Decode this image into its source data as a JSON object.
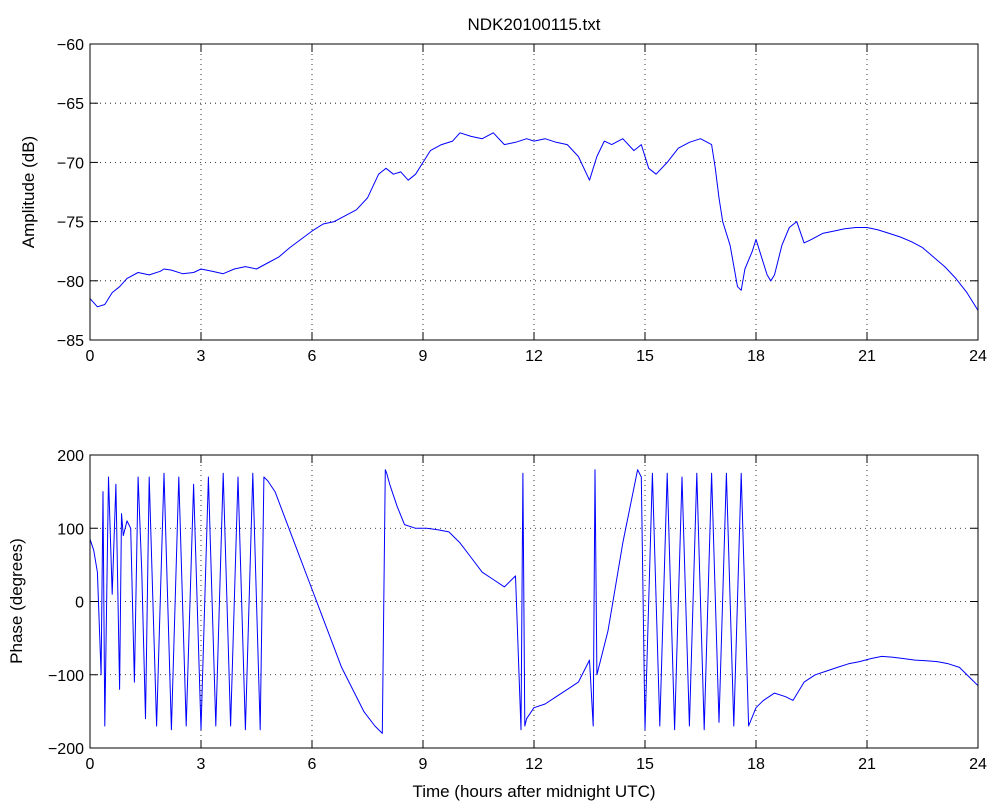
{
  "chart_data": [
    {
      "type": "line",
      "title": "NDK20100115.txt",
      "xlabel": "",
      "ylabel": "Amplitude (dB)",
      "xlim": [
        0,
        24
      ],
      "ylim": [
        -85,
        -60
      ],
      "x_ticks": [
        0,
        3,
        6,
        9,
        12,
        15,
        18,
        21,
        24
      ],
      "y_ticks": [
        -85,
        -80,
        -75,
        -70,
        -65,
        -60
      ],
      "x_tick_labels": [
        "0",
        "3",
        "6",
        "9",
        "12",
        "15",
        "18",
        "21",
        "24"
      ],
      "y_tick_labels": [
        "-85",
        "-80",
        "-75",
        "-70",
        "-65",
        "-60"
      ],
      "grid": true,
      "color": "#0000ff",
      "series": [
        {
          "x": [
            0,
            0.2,
            0.4,
            0.6,
            0.8,
            1.0,
            1.3,
            1.6,
            1.9,
            2.0,
            2.2,
            2.5,
            2.8,
            3.0,
            3.3,
            3.6,
            3.9,
            4.2,
            4.5,
            4.8,
            5.1,
            5.4,
            5.7,
            6.0,
            6.3,
            6.6,
            6.9,
            7.2,
            7.5,
            7.8,
            8.0,
            8.2,
            8.4,
            8.6,
            8.8,
            9.0,
            9.2,
            9.5,
            9.8,
            10.0,
            10.3,
            10.6,
            10.9,
            11.2,
            11.5,
            11.8,
            12.0,
            12.3,
            12.6,
            12.9,
            13.2,
            13.5,
            13.7,
            13.9,
            14.1,
            14.4,
            14.7,
            14.9,
            15.1,
            15.3,
            15.6,
            15.9,
            16.2,
            16.5,
            16.8,
            16.9,
            17.0,
            17.1,
            17.3,
            17.5,
            17.6,
            17.7,
            17.9,
            18.0,
            18.1,
            18.3,
            18.4,
            18.5,
            18.7,
            18.9,
            19.1,
            19.3,
            19.5,
            19.8,
            20.1,
            20.4,
            20.7,
            21.0,
            21.3,
            21.6,
            21.9,
            22.2,
            22.5,
            22.8,
            23.1,
            23.4,
            23.7,
            24.0
          ],
          "y": [
            -81.5,
            -82.2,
            -82.0,
            -81.0,
            -80.5,
            -79.8,
            -79.3,
            -79.5,
            -79.2,
            -79.0,
            -79.1,
            -79.4,
            -79.3,
            -79.0,
            -79.2,
            -79.4,
            -79.0,
            -78.8,
            -79.0,
            -78.5,
            -78.0,
            -77.2,
            -76.5,
            -75.8,
            -75.2,
            -75.0,
            -74.5,
            -74.0,
            -73.0,
            -71.0,
            -70.5,
            -71.0,
            -70.8,
            -71.5,
            -71.0,
            -70.0,
            -69.0,
            -68.5,
            -68.2,
            -67.5,
            -67.8,
            -68.0,
            -67.5,
            -68.5,
            -68.3,
            -68.0,
            -68.2,
            -68.0,
            -68.3,
            -68.5,
            -69.5,
            -71.5,
            -69.5,
            -68.2,
            -68.5,
            -68.0,
            -69.0,
            -68.5,
            -70.5,
            -71.0,
            -70.0,
            -68.8,
            -68.3,
            -68.0,
            -68.5,
            -70.5,
            -73.0,
            -75.0,
            -77.0,
            -80.5,
            -80.8,
            -79.0,
            -77.5,
            -76.5,
            -77.5,
            -79.5,
            -80.0,
            -79.5,
            -77.0,
            -75.5,
            -75.0,
            -76.8,
            -76.5,
            -76.0,
            -75.8,
            -75.6,
            -75.5,
            -75.5,
            -75.7,
            -76.0,
            -76.3,
            -76.7,
            -77.2,
            -78.0,
            -78.8,
            -79.8,
            -81.0,
            -82.5
          ]
        }
      ]
    },
    {
      "type": "line",
      "title": "",
      "xlabel": "Time (hours after midnight UTC)",
      "ylabel": "Phase (degrees)",
      "xlim": [
        0,
        24
      ],
      "ylim": [
        -200,
        200
      ],
      "x_ticks": [
        0,
        3,
        6,
        9,
        12,
        15,
        18,
        21,
        24
      ],
      "y_ticks": [
        -200,
        -100,
        0,
        100,
        200
      ],
      "x_tick_labels": [
        "0",
        "3",
        "6",
        "9",
        "12",
        "15",
        "18",
        "21",
        "24"
      ],
      "y_tick_labels": [
        "-200",
        "-100",
        "0",
        "100",
        "200"
      ],
      "grid": true,
      "color": "#0000ff",
      "series": [
        {
          "x": [
            0,
            0.1,
            0.2,
            0.3,
            0.35,
            0.4,
            0.5,
            0.6,
            0.7,
            0.8,
            0.85,
            0.9,
            1.0,
            1.1,
            1.2,
            1.3,
            1.4,
            1.5,
            1.6,
            1.8,
            2.0,
            2.2,
            2.4,
            2.6,
            2.8,
            3.0,
            3.2,
            3.4,
            3.6,
            3.8,
            4.0,
            4.2,
            4.4,
            4.6,
            4.7,
            4.8,
            5.0,
            5.3,
            5.6,
            5.9,
            6.2,
            6.5,
            6.8,
            7.1,
            7.4,
            7.7,
            7.9,
            7.98,
            8.02,
            8.1,
            8.3,
            8.5,
            8.8,
            9.1,
            9.4,
            9.7,
            10.0,
            10.3,
            10.6,
            10.9,
            11.2,
            11.5,
            11.65,
            11.7,
            11.75,
            11.8,
            12.0,
            12.3,
            12.6,
            12.9,
            13.2,
            13.5,
            13.6,
            13.65,
            13.7,
            13.8,
            14.0,
            14.2,
            14.4,
            14.6,
            14.8,
            14.9,
            15.0,
            15.2,
            15.4,
            15.6,
            15.8,
            16.0,
            16.2,
            16.4,
            16.6,
            16.8,
            17.0,
            17.2,
            17.4,
            17.6,
            17.8,
            18.0,
            18.2,
            18.5,
            18.8,
            19.0,
            19.3,
            19.6,
            19.9,
            20.2,
            20.5,
            20.8,
            21.1,
            21.4,
            21.7,
            22.0,
            22.3,
            22.6,
            22.9,
            23.2,
            23.5,
            23.8,
            24.0
          ],
          "y": [
            85,
            70,
            40,
            -100,
            150,
            -170,
            170,
            10,
            160,
            -120,
            120,
            90,
            110,
            100,
            -110,
            170,
            40,
            -160,
            170,
            -170,
            175,
            -175,
            170,
            -170,
            160,
            -175,
            170,
            -170,
            175,
            -170,
            170,
            -175,
            175,
            -175,
            170,
            165,
            150,
            110,
            70,
            30,
            -10,
            -50,
            -90,
            -120,
            -150,
            -170,
            -180,
            180,
            175,
            160,
            130,
            105,
            100,
            100,
            98,
            95,
            80,
            60,
            40,
            30,
            20,
            35,
            -175,
            175,
            -170,
            -160,
            -145,
            -140,
            -130,
            -120,
            -110,
            -80,
            -170,
            180,
            -100,
            -80,
            -40,
            20,
            80,
            130,
            180,
            170,
            -175,
            175,
            -170,
            175,
            -175,
            170,
            -170,
            175,
            -175,
            175,
            -165,
            175,
            -170,
            175,
            -170,
            -145,
            -135,
            -125,
            -130,
            -135,
            -110,
            -100,
            -95,
            -90,
            -85,
            -82,
            -78,
            -75,
            -76,
            -78,
            -80,
            -81,
            -82,
            -85,
            -90,
            -105,
            -115
          ]
        }
      ]
    }
  ]
}
